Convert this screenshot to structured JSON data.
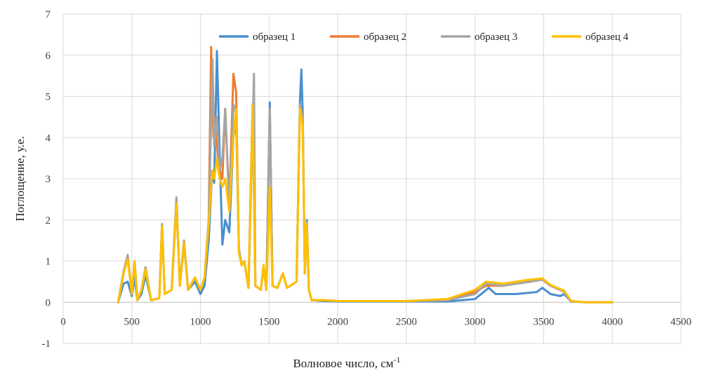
{
  "chart_data": {
    "type": "line",
    "title": "",
    "xlabel": "Волновое число, см",
    "xlabel_sup": "-1",
    "ylabel": "Поглощение, у.е.",
    "xlim": [
      0,
      4500
    ],
    "ylim": [
      -1,
      7
    ],
    "x_ticks": [
      0,
      500,
      1000,
      1500,
      2000,
      2500,
      3000,
      3500,
      4000,
      4500
    ],
    "y_ticks": [
      -1,
      0,
      1,
      2,
      3,
      4,
      5,
      6,
      7
    ],
    "grid": true,
    "legend_position": "top",
    "series": [
      {
        "name": "образец 1",
        "color": "#4a8fcf",
        "points": [
          [
            400,
            0
          ],
          [
            440,
            0.45
          ],
          [
            470,
            0.5
          ],
          [
            500,
            0.15
          ],
          [
            520,
            0.6
          ],
          [
            540,
            0.05
          ],
          [
            570,
            0.2
          ],
          [
            600,
            0.65
          ],
          [
            640,
            0.05
          ],
          [
            700,
            0.1
          ],
          [
            720,
            1.8
          ],
          [
            740,
            0.2
          ],
          [
            790,
            0.3
          ],
          [
            825,
            2.4
          ],
          [
            850,
            0.4
          ],
          [
            880,
            1.4
          ],
          [
            910,
            0.3
          ],
          [
            960,
            0.5
          ],
          [
            1000,
            0.2
          ],
          [
            1030,
            0.4
          ],
          [
            1060,
            1.5
          ],
          [
            1085,
            3.2
          ],
          [
            1100,
            2.9
          ],
          [
            1120,
            6.1
          ],
          [
            1140,
            3.6
          ],
          [
            1160,
            1.4
          ],
          [
            1180,
            2.0
          ],
          [
            1210,
            1.7
          ],
          [
            1240,
            4.0
          ],
          [
            1260,
            4.4
          ],
          [
            1280,
            1.3
          ],
          [
            1300,
            0.9
          ],
          [
            1320,
            1.0
          ],
          [
            1350,
            0.35
          ],
          [
            1380,
            4.8
          ],
          [
            1400,
            0.4
          ],
          [
            1440,
            0.3
          ],
          [
            1460,
            0.9
          ],
          [
            1480,
            0.3
          ],
          [
            1505,
            4.85
          ],
          [
            1525,
            0.4
          ],
          [
            1560,
            0.35
          ],
          [
            1600,
            0.7
          ],
          [
            1630,
            0.35
          ],
          [
            1700,
            0.5
          ],
          [
            1725,
            4.9
          ],
          [
            1735,
            5.65
          ],
          [
            1745,
            4.6
          ],
          [
            1760,
            0.7
          ],
          [
            1775,
            2.0
          ],
          [
            1790,
            0.3
          ],
          [
            1810,
            0.05
          ],
          [
            1900,
            0.03
          ],
          [
            2000,
            0.02
          ],
          [
            2200,
            0.02
          ],
          [
            2500,
            0.02
          ],
          [
            2800,
            0.02
          ],
          [
            3000,
            0.08
          ],
          [
            3100,
            0.35
          ],
          [
            3150,
            0.2
          ],
          [
            3300,
            0.2
          ],
          [
            3450,
            0.25
          ],
          [
            3490,
            0.35
          ],
          [
            3550,
            0.2
          ],
          [
            3620,
            0.15
          ],
          [
            3650,
            0.2
          ],
          [
            3700,
            0.02
          ],
          [
            3800,
            0
          ],
          [
            4000,
            0
          ]
        ]
      },
      {
        "name": "образец 2",
        "color": "#ed7d31",
        "points": [
          [
            400,
            0
          ],
          [
            440,
            0.7
          ],
          [
            470,
            1.1
          ],
          [
            500,
            0.2
          ],
          [
            520,
            1.0
          ],
          [
            540,
            0.05
          ],
          [
            570,
            0.3
          ],
          [
            600,
            0.85
          ],
          [
            640,
            0.05
          ],
          [
            700,
            0.1
          ],
          [
            720,
            1.9
          ],
          [
            740,
            0.2
          ],
          [
            790,
            0.3
          ],
          [
            825,
            2.5
          ],
          [
            850,
            0.4
          ],
          [
            880,
            1.5
          ],
          [
            910,
            0.3
          ],
          [
            960,
            0.6
          ],
          [
            1000,
            0.3
          ],
          [
            1030,
            0.6
          ],
          [
            1060,
            2.0
          ],
          [
            1078,
            6.2
          ],
          [
            1095,
            4.0
          ],
          [
            1110,
            4.5
          ],
          [
            1130,
            3.3
          ],
          [
            1160,
            3.0
          ],
          [
            1180,
            4.7
          ],
          [
            1210,
            2.4
          ],
          [
            1240,
            5.55
          ],
          [
            1260,
            5.1
          ],
          [
            1280,
            1.3
          ],
          [
            1300,
            0.9
          ],
          [
            1320,
            1.0
          ],
          [
            1350,
            0.35
          ],
          [
            1380,
            4.8
          ],
          [
            1400,
            0.4
          ],
          [
            1440,
            0.3
          ],
          [
            1460,
            0.9
          ],
          [
            1480,
            0.3
          ],
          [
            1505,
            4.7
          ],
          [
            1525,
            0.4
          ],
          [
            1560,
            0.35
          ],
          [
            1600,
            0.7
          ],
          [
            1630,
            0.35
          ],
          [
            1700,
            0.5
          ],
          [
            1725,
            4.8
          ],
          [
            1745,
            4.5
          ],
          [
            1760,
            0.7
          ],
          [
            1775,
            1.9
          ],
          [
            1790,
            0.3
          ],
          [
            1810,
            0.05
          ],
          [
            1900,
            0.05
          ],
          [
            2000,
            0.03
          ],
          [
            2200,
            0.03
          ],
          [
            2500,
            0.03
          ],
          [
            2800,
            0.05
          ],
          [
            3000,
            0.25
          ],
          [
            3080,
            0.4
          ],
          [
            3200,
            0.4
          ],
          [
            3400,
            0.5
          ],
          [
            3490,
            0.55
          ],
          [
            3550,
            0.4
          ],
          [
            3620,
            0.3
          ],
          [
            3650,
            0.25
          ],
          [
            3700,
            0.03
          ],
          [
            3800,
            0
          ],
          [
            4000,
            0
          ]
        ]
      },
      {
        "name": "образец 3",
        "color": "#a5a5a5",
        "points": [
          [
            400,
            0
          ],
          [
            440,
            0.75
          ],
          [
            470,
            1.15
          ],
          [
            500,
            0.2
          ],
          [
            520,
            1.0
          ],
          [
            540,
            0.05
          ],
          [
            570,
            0.3
          ],
          [
            600,
            0.85
          ],
          [
            640,
            0.05
          ],
          [
            700,
            0.1
          ],
          [
            720,
            1.9
          ],
          [
            740,
            0.2
          ],
          [
            790,
            0.3
          ],
          [
            825,
            2.55
          ],
          [
            850,
            0.4
          ],
          [
            880,
            1.5
          ],
          [
            910,
            0.3
          ],
          [
            960,
            0.6
          ],
          [
            1000,
            0.3
          ],
          [
            1030,
            0.6
          ],
          [
            1060,
            2.0
          ],
          [
            1088,
            5.9
          ],
          [
            1100,
            3.8
          ],
          [
            1120,
            4.5
          ],
          [
            1140,
            3.2
          ],
          [
            1160,
            3.5
          ],
          [
            1180,
            4.7
          ],
          [
            1210,
            2.3
          ],
          [
            1240,
            4.8
          ],
          [
            1260,
            4.6
          ],
          [
            1280,
            1.3
          ],
          [
            1300,
            0.9
          ],
          [
            1320,
            1.0
          ],
          [
            1350,
            0.35
          ],
          [
            1390,
            5.55
          ],
          [
            1400,
            0.4
          ],
          [
            1440,
            0.3
          ],
          [
            1460,
            0.9
          ],
          [
            1480,
            0.3
          ],
          [
            1505,
            4.7
          ],
          [
            1525,
            0.4
          ],
          [
            1560,
            0.35
          ],
          [
            1600,
            0.7
          ],
          [
            1630,
            0.35
          ],
          [
            1700,
            0.5
          ],
          [
            1725,
            4.8
          ],
          [
            1745,
            4.5
          ],
          [
            1760,
            0.7
          ],
          [
            1775,
            1.95
          ],
          [
            1790,
            0.3
          ],
          [
            1810,
            0.05
          ],
          [
            1900,
            0.05
          ],
          [
            2000,
            0.03
          ],
          [
            2200,
            0.03
          ],
          [
            2500,
            0.03
          ],
          [
            2800,
            0.05
          ],
          [
            3000,
            0.2
          ],
          [
            3080,
            0.45
          ],
          [
            3200,
            0.4
          ],
          [
            3400,
            0.5
          ],
          [
            3490,
            0.55
          ],
          [
            3550,
            0.4
          ],
          [
            3620,
            0.3
          ],
          [
            3650,
            0.25
          ],
          [
            3700,
            0.03
          ],
          [
            3800,
            0
          ],
          [
            4000,
            0
          ]
        ]
      },
      {
        "name": "образец 4",
        "color": "#ffc000",
        "points": [
          [
            400,
            0
          ],
          [
            440,
            0.7
          ],
          [
            470,
            1.05
          ],
          [
            500,
            0.2
          ],
          [
            520,
            1.0
          ],
          [
            540,
            0.05
          ],
          [
            570,
            0.3
          ],
          [
            600,
            0.8
          ],
          [
            640,
            0.05
          ],
          [
            700,
            0.1
          ],
          [
            720,
            1.85
          ],
          [
            740,
            0.2
          ],
          [
            790,
            0.3
          ],
          [
            825,
            2.4
          ],
          [
            850,
            0.4
          ],
          [
            880,
            1.45
          ],
          [
            910,
            0.3
          ],
          [
            960,
            0.6
          ],
          [
            1000,
            0.3
          ],
          [
            1030,
            0.6
          ],
          [
            1060,
            1.9
          ],
          [
            1085,
            3.2
          ],
          [
            1100,
            3.0
          ],
          [
            1120,
            3.5
          ],
          [
            1140,
            3.0
          ],
          [
            1160,
            2.8
          ],
          [
            1180,
            3.0
          ],
          [
            1210,
            2.2
          ],
          [
            1240,
            4.0
          ],
          [
            1260,
            4.7
          ],
          [
            1280,
            1.2
          ],
          [
            1300,
            0.9
          ],
          [
            1320,
            1.0
          ],
          [
            1350,
            0.35
          ],
          [
            1380,
            4.8
          ],
          [
            1400,
            0.4
          ],
          [
            1440,
            0.3
          ],
          [
            1460,
            0.9
          ],
          [
            1480,
            0.3
          ],
          [
            1505,
            2.8
          ],
          [
            1525,
            0.4
          ],
          [
            1560,
            0.35
          ],
          [
            1600,
            0.7
          ],
          [
            1630,
            0.35
          ],
          [
            1700,
            0.5
          ],
          [
            1725,
            4.7
          ],
          [
            1745,
            4.3
          ],
          [
            1760,
            0.7
          ],
          [
            1775,
            1.9
          ],
          [
            1790,
            0.3
          ],
          [
            1810,
            0.05
          ],
          [
            1900,
            0.05
          ],
          [
            2000,
            0.03
          ],
          [
            2200,
            0.03
          ],
          [
            2500,
            0.03
          ],
          [
            2800,
            0.08
          ],
          [
            3000,
            0.3
          ],
          [
            3080,
            0.5
          ],
          [
            3200,
            0.45
          ],
          [
            3400,
            0.55
          ],
          [
            3490,
            0.58
          ],
          [
            3550,
            0.42
          ],
          [
            3620,
            0.32
          ],
          [
            3650,
            0.28
          ],
          [
            3700,
            0.03
          ],
          [
            3800,
            0
          ],
          [
            4000,
            0
          ]
        ]
      }
    ]
  }
}
